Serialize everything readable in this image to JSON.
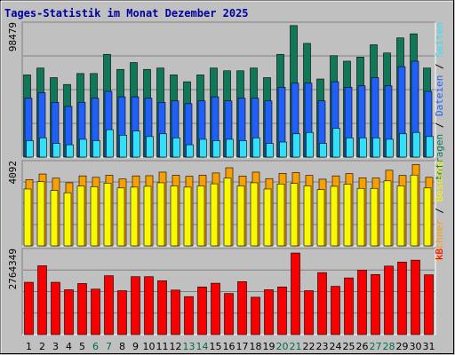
{
  "chart_data": {
    "title": "Tages-Statistik im Monat Dezember 2025",
    "type": "bar",
    "categories": [
      "1",
      "2",
      "3",
      "4",
      "5",
      "6",
      "7",
      "8",
      "9",
      "10",
      "11",
      "12",
      "13",
      "14",
      "15",
      "16",
      "17",
      "18",
      "19",
      "20",
      "21",
      "22",
      "23",
      "24",
      "25",
      "26",
      "27",
      "28",
      "29",
      "30",
      "31"
    ],
    "weekend_days": [
      "6",
      "7",
      "13",
      "14",
      "20",
      "21",
      "27",
      "28"
    ],
    "colors": {
      "background": "#c0c0c0",
      "frame": "#808080",
      "title": "#0000a0",
      "weekend_label": "#006c4c",
      "anfragen": "#107858",
      "dateien": "#2060f8",
      "seiten": "#30e0f8",
      "besuche": "#f8a000",
      "rechner": "#f8f800",
      "kb": "#f80000"
    },
    "panels": [
      {
        "id": "hits",
        "ytick": "98479",
        "ymax": 98479,
        "right_label": [
          {
            "text": "Anfragen",
            "color": "#107858"
          },
          {
            "text": " / ",
            "color": "#000000"
          },
          {
            "text": "Dateien",
            "color": "#2060f8"
          },
          {
            "text": " / ",
            "color": "#000000"
          },
          {
            "text": "Seiten",
            "color": "#30e0f8"
          }
        ],
        "series": [
          {
            "name": "Anfragen",
            "values": [
              60000,
              65000,
              58000,
              53000,
              61000,
              61000,
              75000,
              64000,
              69000,
              64000,
              65000,
              60000,
              55000,
              60000,
              65000,
              63000,
              63000,
              65000,
              58000,
              75000,
              96000,
              83000,
              57000,
              74000,
              70000,
              73000,
              82000,
              76000,
              87000,
              90000,
              65000
            ]
          },
          {
            "name": "Dateien",
            "values": [
              43000,
              47000,
              40000,
              37000,
              40000,
              43000,
              48000,
              44000,
              44000,
              43000,
              40000,
              41000,
              39000,
              41000,
              44000,
              41000,
              43000,
              43000,
              41000,
              51000,
              54000,
              54000,
              41000,
              55000,
              51000,
              52000,
              58000,
              52000,
              66000,
              70000,
              48000
            ]
          },
          {
            "name": "Seiten",
            "values": [
              12000,
              14000,
              10000,
              9000,
              13000,
              12000,
              20000,
              16000,
              19000,
              15000,
              17000,
              14000,
              9000,
              13000,
              12000,
              13000,
              12000,
              14000,
              10000,
              11000,
              17000,
              18000,
              10000,
              21000,
              14000,
              14000,
              14000,
              13000,
              17000,
              18000,
              15000
            ]
          }
        ]
      },
      {
        "id": "visits",
        "ytick": "4092",
        "ymax": 4092,
        "right_label": [
          {
            "text": "Rechner",
            "color": "#f8a000"
          },
          {
            "text": " / ",
            "color": "#000000"
          },
          {
            "text": "Besuche",
            "color": "#f8f800"
          }
        ],
        "series": [
          {
            "name": "Besuche",
            "values": [
              3180,
              3450,
              3250,
              3030,
              3360,
              3290,
              3390,
              3210,
              3360,
              3370,
              3540,
              3390,
              3340,
              3390,
              3500,
              3750,
              3350,
              3540,
              3230,
              3480,
              3520,
              3380,
              3200,
              3360,
              3470,
              3270,
              3260,
              3630,
              3380,
              3910,
              3290
            ]
          },
          {
            "name": "Rechner",
            "values": [
              2730,
              3080,
              2660,
              2550,
              2870,
              2840,
              3010,
              2780,
              2820,
              2860,
              3030,
              2880,
              2820,
              2880,
              2980,
              3250,
              2880,
              3030,
              2730,
              2970,
              3000,
              2880,
              2700,
              2860,
              2960,
              2760,
              2760,
              3120,
              2880,
              3400,
              2780
            ]
          }
        ]
      },
      {
        "id": "kb",
        "ytick": "2764349",
        "ymax": 2764349,
        "right_label": [
          {
            "text": "kB",
            "color": "#f80000"
          }
        ],
        "series": [
          {
            "name": "kB",
            "values": [
              1680000,
              2210000,
              1680000,
              1440000,
              1640000,
              1460000,
              1890000,
              1410000,
              1860000,
              1860000,
              1730000,
              1430000,
              1220000,
              1530000,
              1650000,
              1320000,
              1700000,
              1200000,
              1440000,
              1530000,
              2620000,
              1410000,
              1990000,
              1550000,
              1820000,
              2070000,
              1930000,
              2200000,
              2330000,
              2390000,
              1920000
            ]
          }
        ]
      }
    ]
  }
}
